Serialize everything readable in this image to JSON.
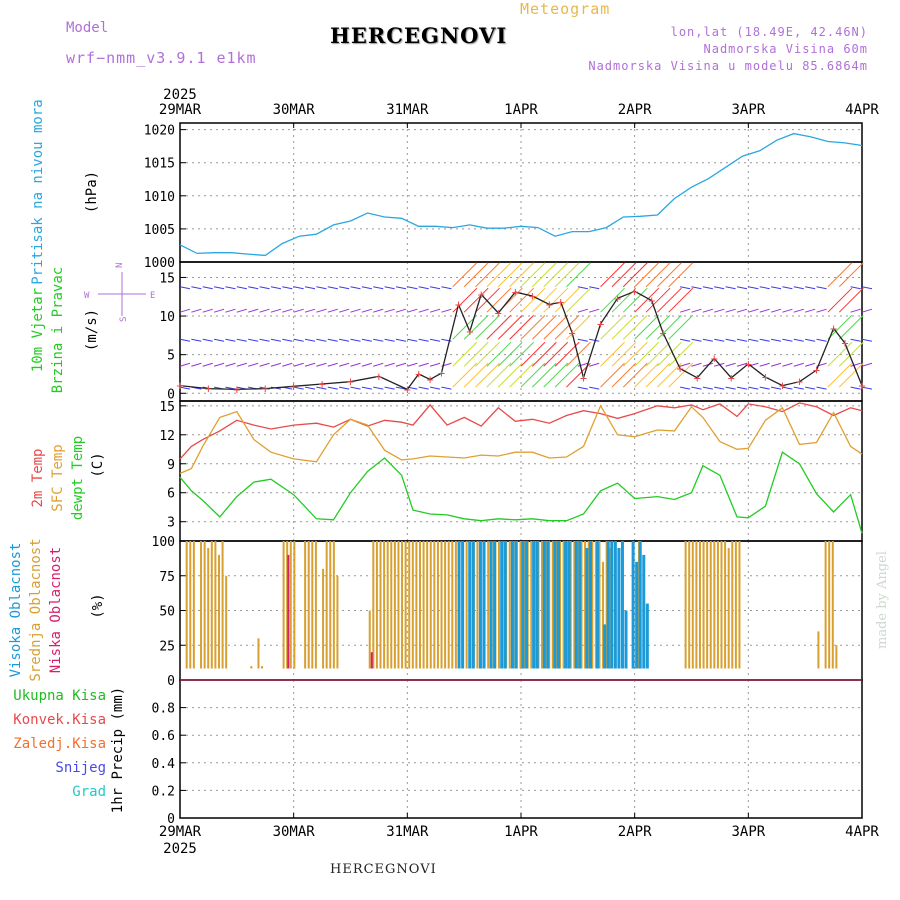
{
  "header": {
    "model_label": "Model",
    "model_version": "wrf−nmm_v3.9.1 e1km",
    "station": "HERCEGNOVI",
    "product": "Meteogram",
    "lonlat": "lon,lat (18.49E, 42.46N)",
    "elevation": "Nadmorska Visina 60m",
    "model_elevation": "Nadmorska Visina u modelu 85.6864m"
  },
  "footer": {
    "station": "HERCEGNOVI",
    "credit": "made by Angel"
  },
  "x_axis": {
    "year": "2025",
    "ticks": [
      "29MAR",
      "30MAR",
      "31MAR",
      "1APR",
      "2APR",
      "3APR",
      "4APR"
    ]
  },
  "colors": {
    "pressure": "#2aa7e0",
    "t2m": "#e84a4a",
    "tsfc": "#e0a030",
    "dewpt": "#22cc22",
    "cloud_high": "#1a9ad8",
    "cloud_mid": "#d8a030",
    "cloud_low": "#d8206a",
    "purple": "#b070d8",
    "wind_total": "#e84a4a"
  },
  "chart_data": [
    {
      "type": "line",
      "panel": "pressure",
      "ylabel": [
        "Pritisak na nivou mora",
        "(hPa)"
      ],
      "ylim": [
        1000,
        1021
      ],
      "yticks": [
        1000,
        1005,
        1010,
        1015,
        1020
      ],
      "x_days": [
        0,
        0.15,
        0.3,
        0.45,
        0.6,
        0.75,
        0.9,
        1.05,
        1.2,
        1.35,
        1.5,
        1.65,
        1.8,
        1.95,
        2.1,
        2.25,
        2.4,
        2.55,
        2.7,
        2.85,
        3.0,
        3.15,
        3.3,
        3.45,
        3.6,
        3.75,
        3.9,
        4.05,
        4.2,
        4.35,
        4.5,
        4.65,
        4.8,
        4.95,
        5.1,
        5.25,
        5.4,
        5.55,
        5.7,
        5.85,
        6.0
      ],
      "series": [
        {
          "values": [
            1002.6,
            1001.3,
            1001.4,
            1001.4,
            1001.2,
            1001.0,
            1002.8,
            1003.9,
            1004.2,
            1005.6,
            1006.2,
            1007.4,
            1006.8,
            1006.6,
            1005.4,
            1005.4,
            1005.2,
            1005.6,
            1005.1,
            1005.1,
            1005.4,
            1005.2,
            1003.9,
            1004.6,
            1004.6,
            1005.2,
            1006.8,
            1006.9,
            1007.1,
            1009.6,
            1011.3,
            1012.6,
            1014.3,
            1016.0,
            1016.8,
            1018.4,
            1019.4,
            1018.9,
            1018.2,
            1018.0,
            1017.6
          ]
        }
      ]
    },
    {
      "type": "line",
      "panel": "wind",
      "ylabel": [
        "10m Vjetar",
        "Brzina i Pravac",
        "(m/s)"
      ],
      "legend": {
        "n": "N",
        "w": "W",
        "e": "E",
        "s": "S"
      },
      "ylim": [
        -1,
        17
      ],
      "yticks": [
        0,
        5,
        10,
        15
      ],
      "x_days": [
        0,
        0.25,
        0.5,
        0.75,
        1.0,
        1.25,
        1.5,
        1.75,
        2.0,
        2.1,
        2.2,
        2.3,
        2.45,
        2.55,
        2.65,
        2.8,
        2.95,
        3.1,
        3.25,
        3.35,
        3.45,
        3.55,
        3.7,
        3.85,
        4.0,
        4.15,
        4.25,
        4.4,
        4.55,
        4.7,
        4.85,
        5.0,
        5.15,
        5.3,
        5.45,
        5.6,
        5.75,
        5.85,
        6.0
      ],
      "series": [
        {
          "values": [
            1.0,
            0.6,
            0.5,
            0.6,
            0.9,
            1.2,
            1.5,
            2.2,
            0.5,
            2.5,
            1.8,
            2.6,
            11.5,
            8.0,
            12.8,
            10.4,
            13.1,
            12.6,
            11.5,
            11.8,
            7.8,
            2.0,
            9.0,
            12.3,
            13.2,
            12.0,
            7.8,
            3.2,
            2.0,
            4.5,
            2.0,
            3.8,
            2.1,
            1.0,
            1.5,
            3.0,
            8.4,
            6.5,
            1.0
          ]
        }
      ],
      "barbs_ref_values_ms": [
        0,
        5,
        10,
        15
      ]
    },
    {
      "type": "line",
      "panel": "temperature",
      "ylabel": [
        "2m Temp",
        "SFC Temp",
        "dewpt Temp",
        "(C)"
      ],
      "ylim": [
        1,
        15.5
      ],
      "yticks": [
        3,
        6,
        9,
        12,
        15
      ],
      "x_days": [
        0,
        0.1,
        0.2,
        0.35,
        0.5,
        0.65,
        0.8,
        1.0,
        1.2,
        1.35,
        1.5,
        1.65,
        1.8,
        1.95,
        2.05,
        2.2,
        2.35,
        2.5,
        2.65,
        2.8,
        2.95,
        3.1,
        3.25,
        3.4,
        3.55,
        3.7,
        3.85,
        4.0,
        4.2,
        4.35,
        4.5,
        4.6,
        4.75,
        4.9,
        5.0,
        5.15,
        5.3,
        5.45,
        5.6,
        5.75,
        5.9,
        6.0
      ],
      "series": [
        {
          "values": [
            9.5,
            10.8,
            11.5,
            12.4,
            13.5,
            13.0,
            12.6,
            13.0,
            13.2,
            12.8,
            13.6,
            12.9,
            13.5,
            13.3,
            13.0,
            15.1,
            13.0,
            13.8,
            12.9,
            14.8,
            13.4,
            13.6,
            13.2,
            14.0,
            14.5,
            14.2,
            13.7,
            14.2,
            15.0,
            14.8,
            15.1,
            14.6,
            15.2,
            13.9,
            15.2,
            14.9,
            14.4,
            15.3,
            14.9,
            14.0,
            14.8,
            14.5
          ]
        },
        {
          "values": [
            8.0,
            8.5,
            10.8,
            13.8,
            14.4,
            11.5,
            10.2,
            9.5,
            9.2,
            12.0,
            13.6,
            13.0,
            10.4,
            9.4,
            9.5,
            9.8,
            9.7,
            9.6,
            9.9,
            9.8,
            10.2,
            10.2,
            9.6,
            9.7,
            10.8,
            15.0,
            12.0,
            11.8,
            12.5,
            12.4,
            14.9,
            13.8,
            11.3,
            10.5,
            10.6,
            13.5,
            14.8,
            11.0,
            11.2,
            14.3,
            10.8,
            10.0
          ]
        },
        {
          "values": [
            7.6,
            6.2,
            5.2,
            3.5,
            5.6,
            7.1,
            7.4,
            5.8,
            3.3,
            3.2,
            6.0,
            8.2,
            9.6,
            7.8,
            4.2,
            3.8,
            3.7,
            3.3,
            3.1,
            3.3,
            3.2,
            3.3,
            3.1,
            3.1,
            3.8,
            6.2,
            7.0,
            5.4,
            5.6,
            5.3,
            6.0,
            8.8,
            7.8,
            3.5,
            3.4,
            4.6,
            10.2,
            9.0,
            5.9,
            4.0,
            5.8,
            1.8
          ]
        }
      ]
    },
    {
      "type": "bar",
      "panel": "clouds",
      "ylabel": [
        "Visoka Oblacnost",
        "Srednja Oblacnost",
        "Niska Oblacnost",
        "(%)"
      ],
      "ylim": [
        0,
        100
      ],
      "yticks": [
        0,
        25,
        50,
        75,
        100
      ],
      "series": [
        {
          "name": "Visoka Oblacnost",
          "values": [
            0,
            0,
            0,
            0,
            0,
            0,
            0,
            0,
            0,
            0,
            0,
            0,
            0,
            0,
            0,
            0,
            0,
            0,
            0,
            0,
            0,
            0,
            0,
            0,
            0,
            0,
            0,
            0,
            0,
            0,
            0,
            0,
            0,
            0,
            0,
            0,
            0,
            0,
            0,
            0,
            0,
            0,
            0,
            0,
            0,
            0,
            0,
            0,
            0,
            0,
            0,
            0,
            0,
            0,
            0,
            0,
            0,
            0,
            0,
            0,
            0,
            0,
            0,
            0,
            0,
            0,
            0,
            0,
            0,
            0,
            0,
            0,
            0,
            0,
            0,
            0,
            0,
            0,
            100,
            100,
            0,
            100,
            100,
            0,
            100,
            100,
            0,
            100,
            100,
            0,
            100,
            100,
            0,
            100,
            100,
            0,
            100,
            100,
            0,
            100,
            100,
            0,
            100,
            100,
            0,
            100,
            100,
            0,
            100,
            100,
            0,
            100,
            100,
            0,
            95,
            100,
            0,
            100,
            0,
            40,
            100,
            100,
            100,
            95,
            100,
            50,
            0,
            100,
            85,
            100,
            90,
            55,
            0,
            0,
            0,
            0,
            0,
            0,
            0,
            0,
            0,
            0,
            0,
            0,
            0,
            0,
            0,
            0,
            0,
            0,
            0,
            0,
            0,
            0,
            0,
            0,
            0,
            0,
            0,
            0,
            0,
            0,
            0,
            0,
            0,
            0,
            0,
            0,
            0,
            0,
            0,
            0,
            0,
            0,
            0,
            0,
            0,
            0,
            0,
            0,
            0,
            0,
            0,
            0,
            0,
            0,
            0,
            0,
            0,
            0,
            0,
            0,
            0
          ]
        },
        {
          "name": "Srednja Oblacnost",
          "values": [
            0,
            0,
            100,
            100,
            100,
            0,
            100,
            100,
            95,
            100,
            100,
            90,
            100,
            75,
            0,
            5,
            0,
            5,
            0,
            0,
            10,
            0,
            30,
            10,
            0,
            0,
            0,
            0,
            0,
            100,
            100,
            100,
            100,
            0,
            0,
            100,
            100,
            100,
            100,
            0,
            80,
            100,
            100,
            100,
            75,
            0,
            0,
            0,
            0,
            0,
            0,
            0,
            0,
            50,
            100,
            100,
            100,
            100,
            100,
            100,
            100,
            100,
            100,
            100,
            100,
            100,
            100,
            100,
            100,
            100,
            100,
            100,
            100,
            100,
            100,
            100,
            100,
            100,
            100,
            100,
            100,
            100,
            100,
            100,
            100,
            100,
            100,
            100,
            100,
            100,
            100,
            100,
            100,
            100,
            100,
            100,
            100,
            100,
            100,
            100,
            100,
            100,
            100,
            100,
            100,
            100,
            100,
            100,
            100,
            100,
            100,
            100,
            100,
            100,
            100,
            100,
            100,
            100,
            85,
            100,
            95,
            0,
            0,
            0,
            0,
            0,
            0,
            0,
            100,
            0,
            0,
            0,
            0,
            0,
            0,
            0,
            0,
            0,
            0,
            0,
            0,
            100,
            100,
            100,
            100,
            100,
            100,
            100,
            100,
            100,
            100,
            100,
            100,
            95,
            100,
            100,
            100,
            0,
            0,
            0,
            0,
            0,
            0,
            0,
            0,
            0,
            0,
            0,
            0,
            0,
            0,
            0,
            0,
            0,
            0,
            0,
            0,
            0,
            35,
            0,
            100,
            100,
            100,
            25,
            0,
            0,
            0,
            0,
            0,
            0,
            0
          ]
        },
        {
          "name": "Niska Oblacnost",
          "values": [
            0,
            0,
            0,
            0,
            0,
            0,
            0,
            0,
            0,
            0,
            0,
            0,
            0,
            0,
            0,
            0,
            0,
            0,
            0,
            0,
            0,
            0,
            0,
            0,
            0,
            0,
            0,
            0,
            0,
            0,
            90,
            0,
            0,
            0,
            0,
            0,
            0,
            0,
            0,
            0,
            0,
            0,
            0,
            0,
            0,
            0,
            0,
            0,
            0,
            0,
            0,
            0,
            0,
            20,
            0,
            0,
            0,
            0,
            0,
            0,
            0,
            0,
            0,
            0,
            0,
            0,
            0,
            0,
            0,
            0,
            0,
            0,
            0,
            0,
            0,
            0,
            0,
            0,
            0,
            0,
            0,
            0,
            0,
            0,
            0,
            0,
            0,
            0,
            0,
            0,
            0,
            0,
            0,
            0,
            0,
            0,
            0,
            0,
            0,
            0,
            0,
            0,
            0,
            0,
            0,
            0,
            0,
            0,
            0,
            0,
            0,
            0,
            0,
            0,
            0,
            0,
            0,
            0,
            0,
            0,
            0,
            0,
            0,
            0,
            0,
            0,
            0,
            0,
            0,
            0,
            0,
            0,
            0,
            0,
            0,
            0,
            0,
            0,
            0,
            0,
            0,
            0,
            0,
            0,
            0,
            0,
            0,
            0,
            0,
            0,
            0,
            0,
            0,
            0,
            0,
            0,
            0,
            0,
            0,
            0,
            0,
            0,
            0,
            0,
            0,
            0,
            0,
            0,
            0,
            0,
            0,
            0,
            0,
            0,
            0,
            0,
            0,
            0,
            0,
            0,
            0,
            0,
            0,
            0,
            0,
            0,
            0,
            0,
            0
          ]
        }
      ]
    },
    {
      "type": "bar",
      "panel": "precip",
      "ylabel": [
        "1hr Precip (mm)"
      ],
      "legend": [
        "Ukupna Kisa",
        "Konvek.Kisa",
        "Zaledj.Kisa",
        "Snijeg",
        "Grad"
      ],
      "legend_colors": [
        "#22bb22",
        "#e84a4a",
        "#f07030",
        "#4a4ae8",
        "#22c8c8"
      ],
      "ylim": [
        0,
        1.0
      ],
      "yticks": [
        0,
        0.2,
        0.4,
        0.6,
        0.8
      ],
      "series": [
        {
          "name": "Ukupna Kisa",
          "values": []
        }
      ]
    }
  ]
}
